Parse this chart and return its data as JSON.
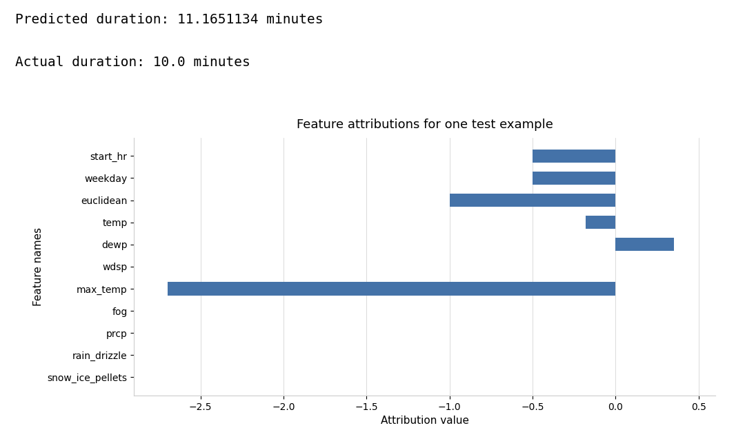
{
  "title": "Feature attributions for one test example",
  "xlabel": "Attribution value",
  "ylabel": "Feature names",
  "predicted_text": "Predicted duration: 11.1651134 minutes",
  "actual_text": "Actual duration: 10.0 minutes",
  "features": [
    "snow_ice_pellets",
    "rain_drizzle",
    "prcp",
    "fog",
    "max_temp",
    "wdsp",
    "dewp",
    "temp",
    "euclidean",
    "weekday",
    "start_hr"
  ],
  "values": [
    0.0,
    0.0,
    0.0,
    0.0,
    -2.7,
    0.0,
    0.35,
    -0.18,
    -1.0,
    -0.5,
    -0.5
  ],
  "bar_color": "#4472a8",
  "xlim": [
    -2.9,
    0.6
  ],
  "xticks": [
    -2.5,
    -2.0,
    -1.5,
    -1.0,
    -0.5,
    0.0,
    0.5
  ],
  "background_color": "#ffffff",
  "figsize": [
    10.8,
    6.24
  ],
  "dpi": 100,
  "title_fontsize": 13,
  "label_fontsize": 11,
  "tick_fontsize": 10,
  "header_fontsize": 14,
  "header_font_family": "monospace"
}
